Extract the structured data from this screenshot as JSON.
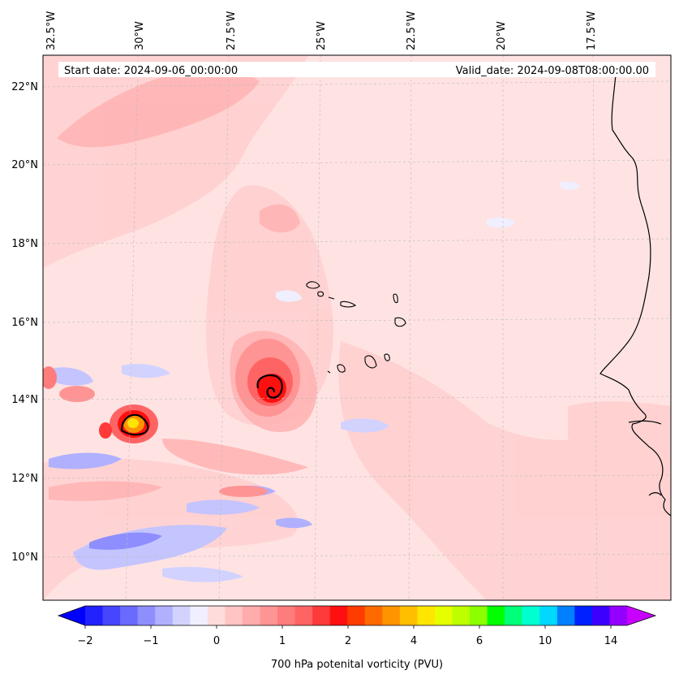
{
  "header": {
    "start_date": "Start date: 2024-09-06_00:00:00",
    "valid_date": "Valid_date: 2024-09-08T08:00:00.00"
  },
  "map": {
    "lon_labels": [
      "32.5°W",
      "30°W",
      "27.5°W",
      "25°W",
      "22.5°W",
      "20°W",
      "17.5°W"
    ],
    "lat_labels": [
      "22°N",
      "20°N",
      "18°N",
      "16°N",
      "14°N",
      "12°N",
      "10°N"
    ],
    "background_color": "#ffe3e3",
    "coastline_color": "#000000"
  },
  "colorbar": {
    "label": "700 hPa potenital vorticity (PVU)",
    "tick_labels": [
      "−2",
      "−1",
      "0",
      "1",
      "2",
      "4",
      "6",
      "10",
      "14"
    ],
    "colors": [
      "#0000ff",
      "#2222ff",
      "#4646ff",
      "#6a6aff",
      "#8e8eff",
      "#b0b0ff",
      "#d2d2ff",
      "#efefff",
      "#ffdcdc",
      "#ffc4c4",
      "#ffacac",
      "#ff9494",
      "#ff7c7c",
      "#ff6464",
      "#ff3a3a",
      "#ff1010",
      "#ff3c00",
      "#ff6a00",
      "#ff9400",
      "#ffbe00",
      "#ffe600",
      "#e6ff00",
      "#beff00",
      "#8cff00",
      "#00ff00",
      "#00ff7a",
      "#00ffd0",
      "#00d8ff",
      "#0080ff",
      "#0020ff",
      "#3c00ff",
      "#9400ff",
      "#c800ff"
    ]
  }
}
